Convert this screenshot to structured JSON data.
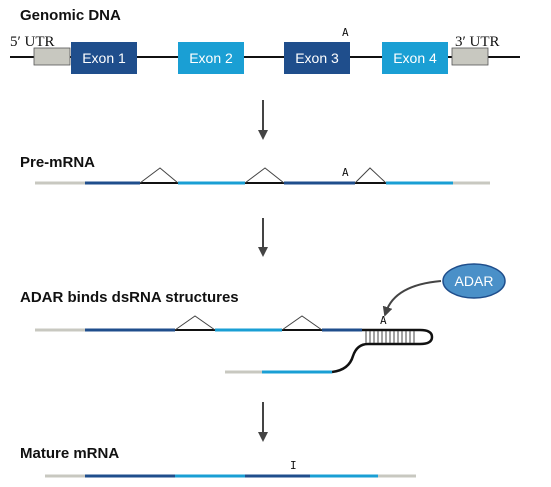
{
  "colors": {
    "exon_dark": "#1f4e8c",
    "exon_light": "#1a9fd4",
    "utr": "#c8c8c0",
    "adar": "#4a90c8",
    "line": "#111111",
    "arrow": "#444444"
  },
  "stages": {
    "genomic": "Genomic DNA",
    "premrna": "Pre-mRNA",
    "adar_binds": "ADAR binds dsRNA structures",
    "mature": "Mature mRNA"
  },
  "utr": {
    "five_prime": "5′ UTR",
    "three_prime": "3′ UTR"
  },
  "exons": [
    "Exon 1",
    "Exon 2",
    "Exon 3",
    "Exon 4"
  ],
  "bases": {
    "adenosine": "A",
    "inosine": "I"
  },
  "enzyme": "ADAR"
}
